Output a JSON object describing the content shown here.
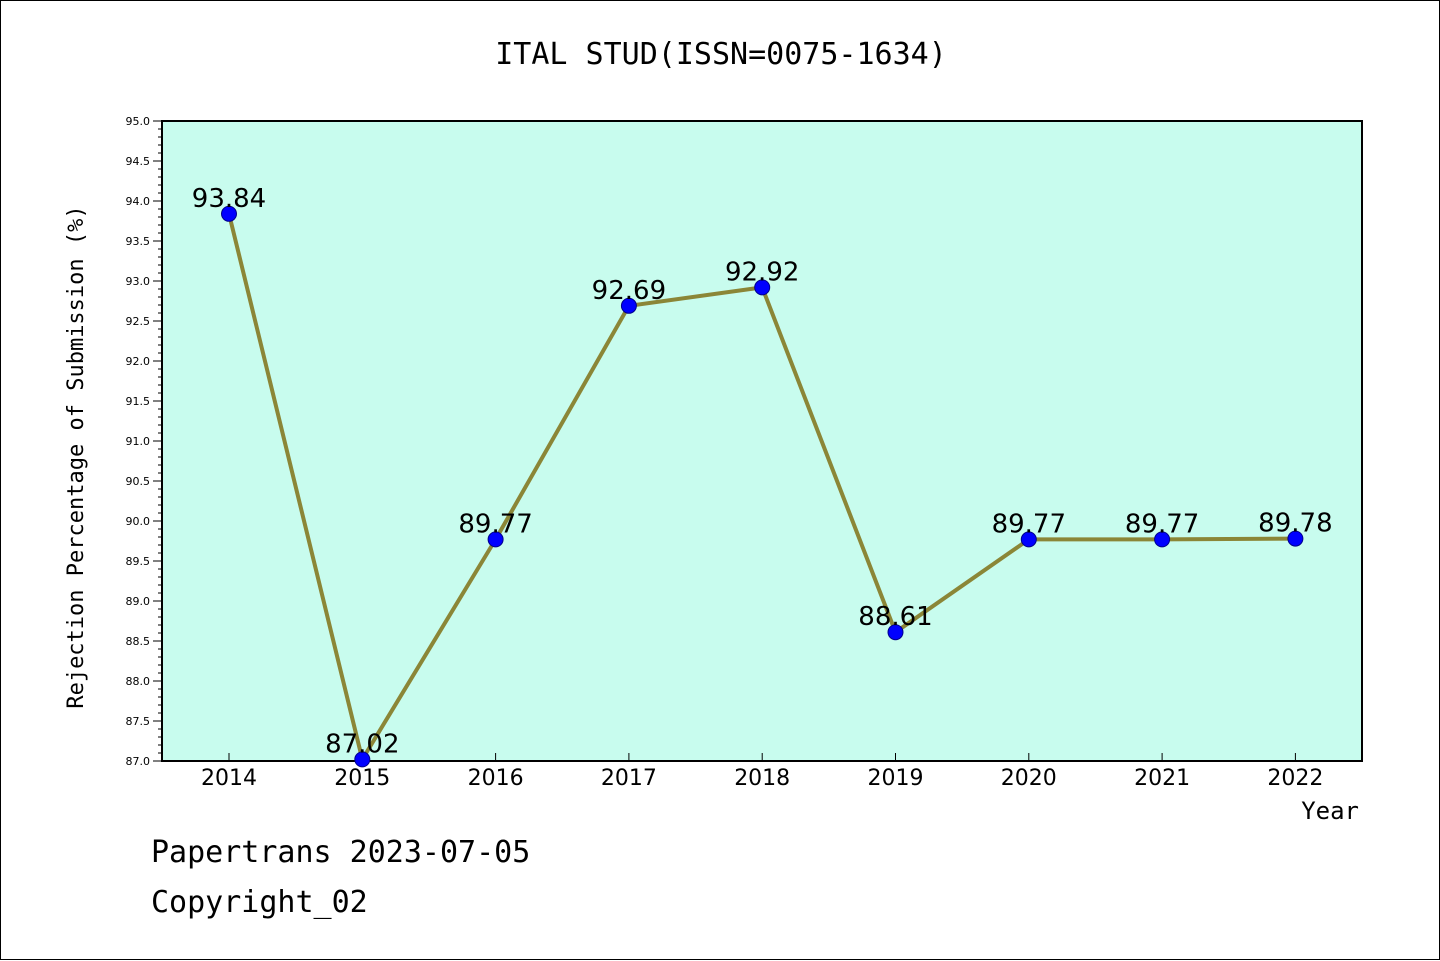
{
  "chart_data": {
    "type": "line",
    "title": "ITAL STUD(ISSN=0075-1634)",
    "xlabel": "Year",
    "ylabel": "Rejection Percentage of Submission (%)",
    "categories": [
      "2014",
      "2015",
      "2016",
      "2017",
      "2018",
      "2019",
      "2020",
      "2021",
      "2022"
    ],
    "series": [
      {
        "values": [
          93.84,
          87.02,
          89.77,
          92.69,
          92.92,
          88.61,
          89.77,
          89.77,
          89.78
        ],
        "labels": [
          "93.84",
          "87.02",
          "89.77",
          "92.69",
          "92.92",
          "88.61",
          "89.77",
          "89.77",
          "89.78"
        ]
      }
    ],
    "ylim": [
      87.0,
      95.0
    ],
    "yticks": [
      "87.0",
      "87.5",
      "88.0",
      "88.5",
      "89.0",
      "89.5",
      "90.0",
      "90.5",
      "91.0",
      "91.5",
      "92.0",
      "92.5",
      "93.0",
      "93.5",
      "94.0",
      "94.5",
      "95.0"
    ],
    "grid": false,
    "colors": {
      "plot_background": "#c8fcee",
      "line": "#8b8637",
      "marker": "#0000ff"
    }
  },
  "footer": {
    "line1": "Papertrans 2023-07-05",
    "line2": "Copyright_02"
  }
}
